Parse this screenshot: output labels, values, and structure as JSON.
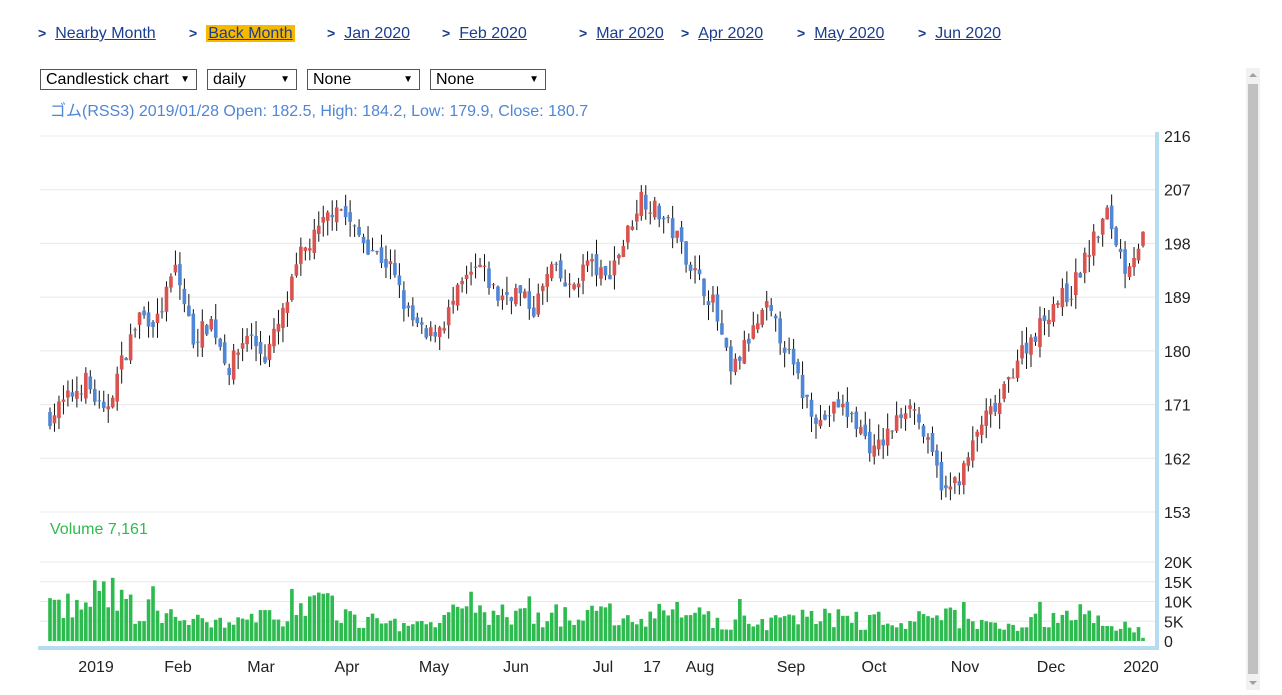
{
  "tabs": [
    {
      "label": "Nearby Month",
      "active": false
    },
    {
      "label": "Back Month",
      "active": true
    },
    {
      "label": "Jan 2020",
      "active": false
    },
    {
      "label": "Feb 2020",
      "active": false
    },
    {
      "label": "Mar 2020",
      "active": false
    },
    {
      "label": "Apr 2020",
      "active": false
    },
    {
      "label": "May 2020",
      "active": false
    },
    {
      "label": "Jun 2020",
      "active": false
    }
  ],
  "controls": {
    "chart_type": "Candlestick chart",
    "interval": "daily",
    "indicator1": "None",
    "indicator2": "None"
  },
  "info_line": "ゴム(RSS3) 2019/01/28 Open: 182.5, High: 184.2, Low: 179.9, Close: 180.7",
  "volume_line": "Volume 7,161",
  "colors": {
    "up": "#d9534f",
    "down": "#4f86d6",
    "volume": "#2dbb4f",
    "axis": "#b5dcef",
    "grid": "#e8e8e8"
  },
  "chart_data": {
    "type": "candlestick",
    "price_axis": {
      "min": 153,
      "max": 216,
      "ticks": [
        216,
        207,
        198,
        189,
        180,
        171,
        162,
        153
      ]
    },
    "volume_axis": {
      "min": 0,
      "max": 20000,
      "ticks": [
        0,
        5000,
        10000,
        15000,
        20000
      ],
      "tick_labels": [
        "0",
        "5K",
        "10K",
        "15K",
        "20K"
      ]
    },
    "x_labels": [
      "2019",
      "Feb",
      "Mar",
      "Apr",
      "May",
      "Jun",
      "Jul",
      "17",
      "Aug",
      "Sep",
      "Oct",
      "Nov",
      "Dec",
      "2020"
    ],
    "price_close": [
      [
        0,
        169
      ],
      [
        4,
        172
      ],
      [
        8,
        175
      ],
      [
        12,
        169
      ],
      [
        16,
        178
      ],
      [
        20,
        186
      ],
      [
        24,
        185
      ],
      [
        28,
        194
      ],
      [
        32,
        182
      ],
      [
        36,
        185
      ],
      [
        40,
        177
      ],
      [
        44,
        183
      ],
      [
        48,
        179
      ],
      [
        52,
        186
      ],
      [
        56,
        196
      ],
      [
        60,
        200
      ],
      [
        64,
        205
      ],
      [
        68,
        200
      ],
      [
        72,
        197
      ],
      [
        76,
        194
      ],
      [
        80,
        186
      ],
      [
        84,
        182
      ],
      [
        88,
        185
      ],
      [
        92,
        191
      ],
      [
        96,
        194
      ],
      [
        100,
        189
      ],
      [
        104,
        190
      ],
      [
        108,
        187
      ],
      [
        112,
        194
      ],
      [
        116,
        190
      ],
      [
        120,
        195
      ],
      [
        124,
        192
      ],
      [
        128,
        198
      ],
      [
        132,
        206
      ],
      [
        136,
        203
      ],
      [
        140,
        199
      ],
      [
        144,
        193
      ],
      [
        148,
        188
      ],
      [
        152,
        176
      ],
      [
        156,
        182
      ],
      [
        160,
        187
      ],
      [
        164,
        181
      ],
      [
        168,
        173
      ],
      [
        172,
        168
      ],
      [
        176,
        171
      ],
      [
        180,
        168
      ],
      [
        184,
        163
      ],
      [
        188,
        167
      ],
      [
        192,
        172
      ],
      [
        196,
        164
      ],
      [
        200,
        156
      ],
      [
        204,
        160
      ],
      [
        208,
        168
      ],
      [
        212,
        171
      ],
      [
        216,
        179
      ],
      [
        220,
        183
      ],
      [
        224,
        188
      ],
      [
        228,
        190
      ],
      [
        232,
        197
      ],
      [
        236,
        203
      ],
      [
        240,
        194
      ],
      [
        244,
        199
      ]
    ],
    "volume_profile": [
      [
        0,
        9000
      ],
      [
        8,
        8500
      ],
      [
        12,
        14000
      ],
      [
        20,
        7000
      ],
      [
        30,
        5000
      ],
      [
        40,
        4500
      ],
      [
        50,
        6000
      ],
      [
        60,
        9500
      ],
      [
        70,
        5000
      ],
      [
        80,
        4000
      ],
      [
        90,
        6500
      ],
      [
        100,
        7000
      ],
      [
        110,
        5000
      ],
      [
        120,
        7500
      ],
      [
        130,
        6000
      ],
      [
        140,
        7000
      ],
      [
        150,
        5000
      ],
      [
        160,
        4500
      ],
      [
        170,
        7000
      ],
      [
        180,
        4800
      ],
      [
        190,
        4500
      ],
      [
        200,
        6500
      ],
      [
        210,
        4000
      ],
      [
        220,
        5000
      ],
      [
        230,
        6500
      ],
      [
        244,
        3000
      ]
    ]
  }
}
